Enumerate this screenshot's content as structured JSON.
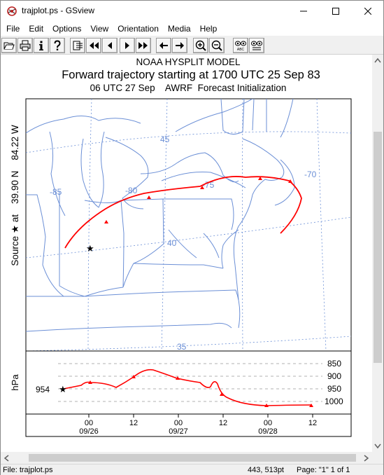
{
  "window": {
    "title": "trajplot.ps - GSview",
    "app_icon": "gsview-icon",
    "controls": {
      "minimize": "minimize-icon",
      "maximize": "maximize-icon",
      "close": "close-icon"
    }
  },
  "menubar": {
    "items": [
      "File",
      "Edit",
      "Options",
      "View",
      "Orientation",
      "Media",
      "Help"
    ]
  },
  "toolbar": {
    "buttons": [
      "open-icon",
      "print-icon",
      "info-icon",
      "help-icon",
      "goto-page-icon",
      "first-page-icon",
      "previous-page-icon",
      "next-page-icon",
      "last-page-icon",
      "back-icon",
      "forward-icon",
      "zoom-in-icon",
      "zoom-out-icon",
      "text-extract-icon",
      "search-text-icon"
    ],
    "abc_label": "ABC"
  },
  "document": {
    "heading1": "NOAA HYSPLIT MODEL",
    "heading2": "Forward trajectory starting at 1700 UTC 25 Sep 83",
    "heading3": "06 UTC 27 Sep    AWRF  Forecast Initialization",
    "source_label": "Source ★ at    39.90 N    84.22 W",
    "map": {
      "lat_labels": [
        "45",
        "40",
        "35"
      ],
      "lon_labels": [
        "-85",
        "-80",
        "-75",
        "-70"
      ],
      "trajectory_color": "#ff0000",
      "source_marker": "star-icon"
    },
    "height_plot": {
      "ylabel": "hPa",
      "start_value": "954",
      "pressure_levels": [
        "850",
        "900",
        "950",
        "1000"
      ],
      "time_ticks": [
        "00",
        "12",
        "00",
        "12",
        "00",
        "12"
      ],
      "date_labels": [
        "09/26",
        "09/27",
        "09/28"
      ]
    }
  },
  "statusbar": {
    "file": "File: trajplot.ps",
    "coords": "443, 513pt",
    "page": "Page: \"1\"  1 of 1"
  }
}
